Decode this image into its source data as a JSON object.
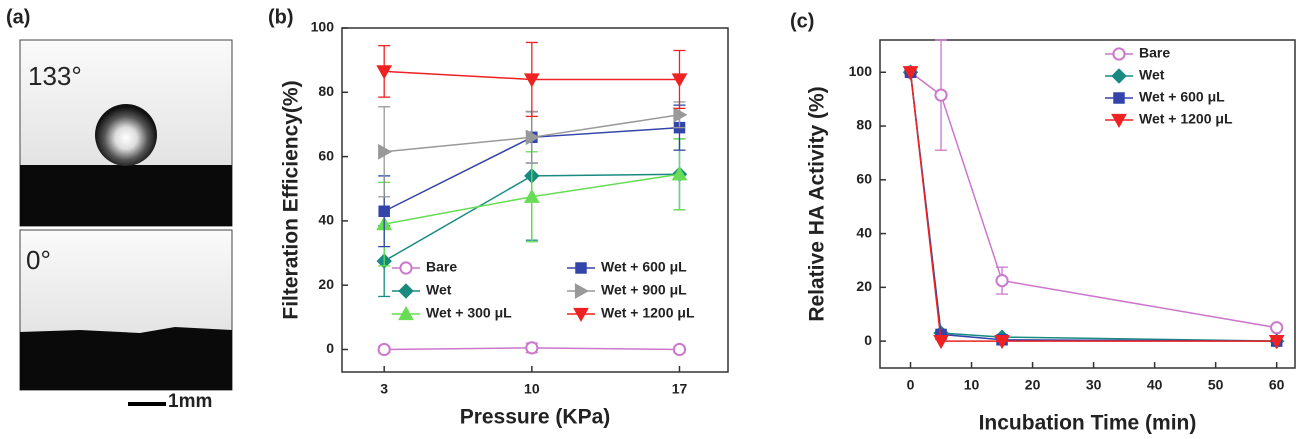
{
  "panel_a": {
    "label": "(a)",
    "top_angle": "133°",
    "bottom_angle": "0°",
    "scale_bar": "1mm"
  },
  "chart_data": [
    {
      "type": "line",
      "panel_label": "(b)",
      "xlabel": "Pressure (KPa)",
      "ylabel": "Filteration Efficiency(%)",
      "x": [
        3,
        10,
        17
      ],
      "xlim": [
        1,
        19.3
      ],
      "xticks": [
        3,
        10,
        17
      ],
      "ylim": [
        -7,
        100
      ],
      "yticks": [
        0,
        20,
        40,
        60,
        80,
        100
      ],
      "legend": "lower center",
      "series": [
        {
          "name": "Bare",
          "color": "#cc77cc",
          "marker": "circle-open",
          "values": [
            0,
            0.5,
            0
          ],
          "errors": [
            1,
            1.5,
            1
          ]
        },
        {
          "name": "Wet",
          "color": "#1a8a80",
          "marker": "diamond",
          "values": [
            27.5,
            54,
            54.5
          ],
          "errors": [
            11,
            20,
            11
          ]
        },
        {
          "name": "Wet + 300 μL",
          "color": "#66dd55",
          "marker": "triangle",
          "values": [
            39,
            47.5,
            54.5
          ],
          "errors": [
            13,
            14,
            11
          ]
        },
        {
          "name": "Wet + 600 μL",
          "color": "#3344aa",
          "marker": "square",
          "values": [
            43,
            66,
            69
          ],
          "errors": [
            11,
            8,
            7
          ]
        },
        {
          "name": "Wet + 900 μL",
          "color": "#999999",
          "marker": "triangle-right",
          "values": [
            61.5,
            66,
            73
          ],
          "errors": [
            14,
            8,
            4
          ]
        },
        {
          "name": "Wet + 1200 μL",
          "color": "#ee2222",
          "marker": "triangle-down",
          "values": [
            86.5,
            84,
            84
          ],
          "errors": [
            8,
            11.5,
            9
          ]
        }
      ]
    },
    {
      "type": "line",
      "panel_label": "(c)",
      "xlabel": "Incubation Time (min)",
      "ylabel": "Relative HA Activity (%)",
      "x": [
        0,
        5,
        15,
        60
      ],
      "xlim": [
        -5,
        63
      ],
      "xticks": [
        0,
        10,
        20,
        30,
        40,
        50,
        60
      ],
      "ylim": [
        -10,
        112
      ],
      "yticks": [
        0,
        20,
        40,
        60,
        80,
        100
      ],
      "legend": "upper right",
      "series": [
        {
          "name": "Bare",
          "color": "#cc77cc",
          "marker": "circle-open",
          "values": [
            100,
            91.5,
            22.5,
            5
          ],
          "errors": [
            0,
            20.5,
            5,
            0
          ]
        },
        {
          "name": "Wet",
          "color": "#1a8a80",
          "marker": "diamond",
          "values": [
            100,
            3,
            1.5,
            0
          ]
        },
        {
          "name": "Wet + 600 μL",
          "color": "#3344aa",
          "marker": "square",
          "values": [
            100,
            2.5,
            0.5,
            0
          ]
        },
        {
          "name": "Wet + 1200 μL",
          "color": "#ee2222",
          "marker": "triangle-down",
          "values": [
            100,
            0,
            0,
            0
          ]
        }
      ]
    }
  ]
}
